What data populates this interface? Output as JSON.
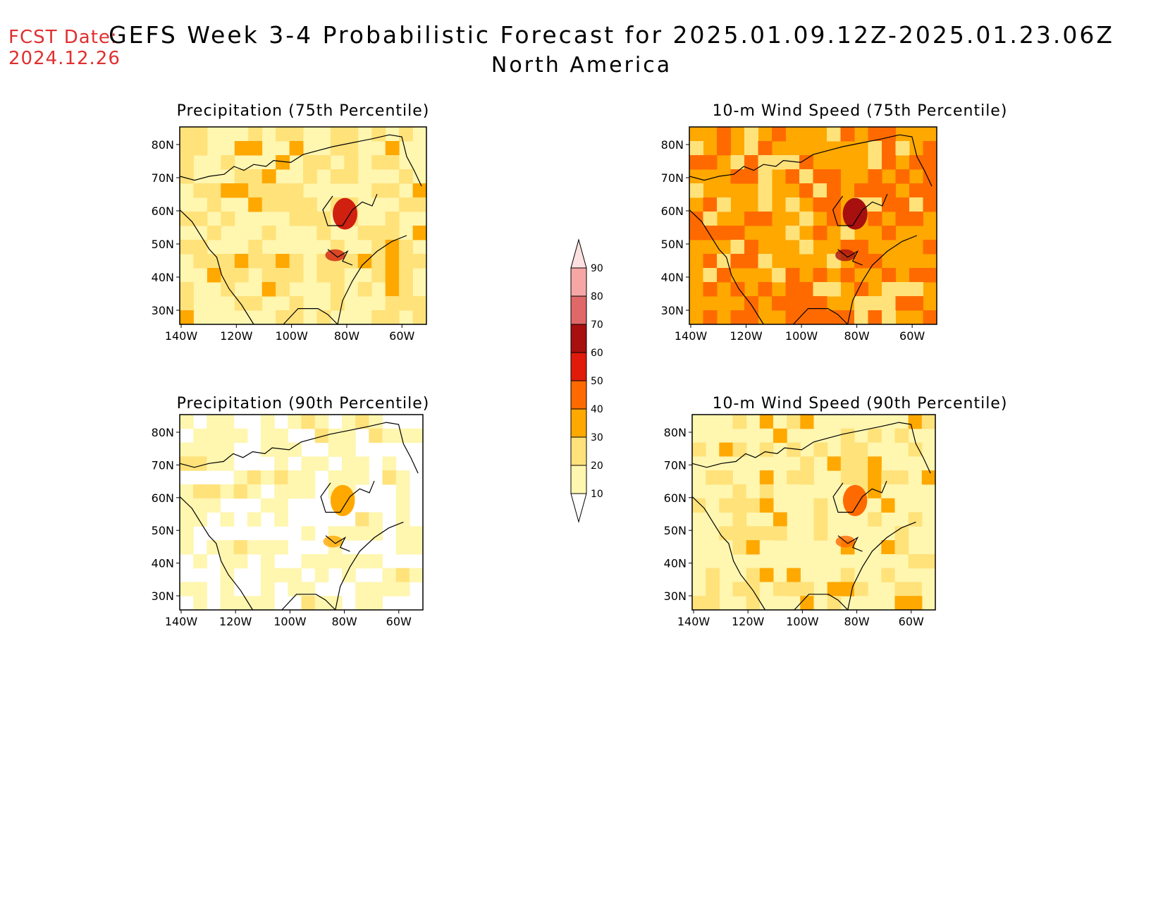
{
  "header": {
    "fcst_label": "FCST Date:",
    "fcst_date": "2024.12.26",
    "title": "GEFS Week 3-4 Probabilistic Forecast for 2025.01.09.12Z-2025.01.23.06Z",
    "subtitle": "North America"
  },
  "map_axes": {
    "lat_labels": [
      "80N",
      "70N",
      "60N",
      "50N",
      "40N",
      "30N"
    ],
    "lon_labels": [
      "140W",
      "120W",
      "100W",
      "80W",
      "60W"
    ]
  },
  "panels": [
    {
      "id": "precip75",
      "title": "Precipitation (75th Percentile)",
      "intensity": "medium"
    },
    {
      "id": "wind75",
      "title": "10-m Wind Speed (75th Percentile)",
      "intensity": "high"
    },
    {
      "id": "precip90",
      "title": "Precipitation (90th Percentile)",
      "intensity": "low"
    },
    {
      "id": "wind90",
      "title": "10-m Wind Speed (90th Percentile)",
      "intensity": "low-medium"
    }
  ],
  "colorbar": {
    "labels": [
      "90",
      "80",
      "70",
      "60",
      "50",
      "40",
      "30",
      "20",
      "10"
    ],
    "colors": [
      "#f7a6a6",
      "#e06868",
      "#a80f0f",
      "#e01b0b",
      "#ff6a00",
      "#ffa800",
      "#ffe27a",
      "#fff6b0"
    ],
    "top_color": "#fde0e0"
  }
}
